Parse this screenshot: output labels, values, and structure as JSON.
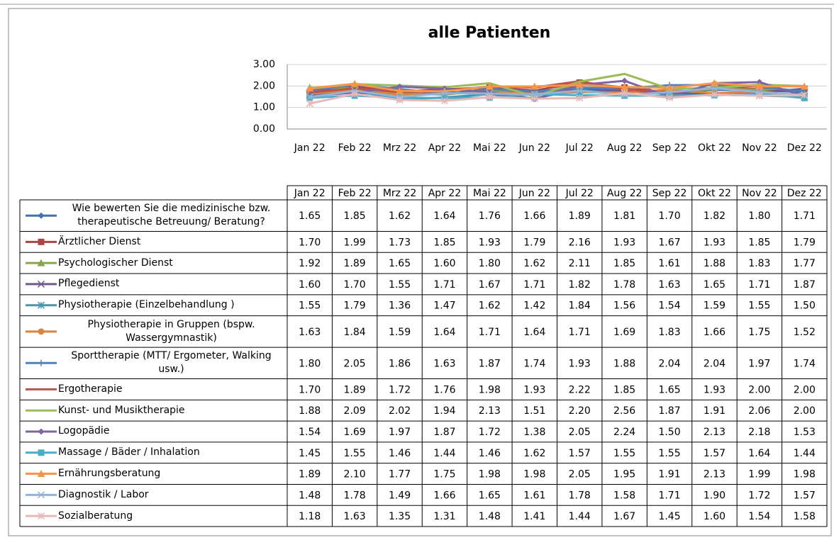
{
  "chart_data": {
    "type": "line",
    "title": "alle Patienten",
    "categories": [
      "Jan 22",
      "Feb 22",
      "Mrz 22",
      "Apr 22",
      "Mai 22",
      "Jun 22",
      "Jul 22",
      "Aug 22",
      "Sep 22",
      "Okt 22",
      "Nov 22",
      "Dez 22"
    ],
    "ylim": [
      0,
      3
    ],
    "yticks": [
      {
        "value": 0,
        "label": "0.00"
      },
      {
        "value": 1,
        "label": "1.00"
      },
      {
        "value": 2,
        "label": "2.00"
      },
      {
        "value": 3,
        "label": "3.00"
      }
    ],
    "grid": true,
    "series": [
      {
        "name": "Wie bewerten Sie die medizinische bzw. therapeutische Betreuung/ Beratung?",
        "color": "#4572A7",
        "marker": "diamond",
        "values": [
          1.65,
          1.85,
          1.62,
          1.64,
          1.76,
          1.66,
          1.89,
          1.81,
          1.7,
          1.82,
          1.8,
          1.71
        ],
        "value_labels": [
          "1.65",
          "1.85",
          "1.62",
          "1.64",
          "1.76",
          "1.66",
          "1.89",
          "1.81",
          "1.70",
          "1.82",
          "1.80",
          "1.71"
        ]
      },
      {
        "name": "Ärztlicher Dienst",
        "color": "#AA4643",
        "marker": "square",
        "values": [
          1.7,
          1.99,
          1.73,
          1.85,
          1.93,
          1.79,
          2.16,
          1.93,
          1.67,
          1.93,
          1.85,
          1.79
        ],
        "value_labels": [
          "1.70",
          "1.99",
          "1.73",
          "1.85",
          "1.93",
          "1.79",
          "2.16",
          "1.93",
          "1.67",
          "1.93",
          "1.85",
          "1.79"
        ]
      },
      {
        "name": "Psychologischer Dienst",
        "color": "#89A54E",
        "marker": "triangle",
        "values": [
          1.92,
          1.89,
          1.65,
          1.6,
          1.8,
          1.62,
          2.11,
          1.85,
          1.61,
          1.88,
          1.83,
          1.77
        ],
        "value_labels": [
          "1.92",
          "1.89",
          "1.65",
          "1.60",
          "1.80",
          "1.62",
          "2.11",
          "1.85",
          "1.61",
          "1.88",
          "1.83",
          "1.77"
        ]
      },
      {
        "name": "Pflegedienst",
        "color": "#71588F",
        "marker": "x",
        "values": [
          1.6,
          1.7,
          1.55,
          1.71,
          1.67,
          1.71,
          1.82,
          1.78,
          1.63,
          1.65,
          1.71,
          1.87
        ],
        "value_labels": [
          "1.60",
          "1.70",
          "1.55",
          "1.71",
          "1.67",
          "1.71",
          "1.82",
          "1.78",
          "1.63",
          "1.65",
          "1.71",
          "1.87"
        ]
      },
      {
        "name": "Physiotherapie (Einzelbehandlung )",
        "color": "#4198AF",
        "marker": "star",
        "values": [
          1.55,
          1.79,
          1.36,
          1.47,
          1.62,
          1.42,
          1.84,
          1.56,
          1.54,
          1.59,
          1.55,
          1.5
        ],
        "value_labels": [
          "1.55",
          "1.79",
          "1.36",
          "1.47",
          "1.62",
          "1.42",
          "1.84",
          "1.56",
          "1.54",
          "1.59",
          "1.55",
          "1.50"
        ]
      },
      {
        "name": "Physiotherapie in Gruppen (bspw. Wassergymnastik)",
        "color": "#DB843D",
        "marker": "circle",
        "values": [
          1.63,
          1.84,
          1.59,
          1.64,
          1.71,
          1.64,
          1.71,
          1.69,
          1.83,
          1.66,
          1.75,
          1.52
        ],
        "value_labels": [
          "1.63",
          "1.84",
          "1.59",
          "1.64",
          "1.71",
          "1.64",
          "1.71",
          "1.69",
          "1.83",
          "1.66",
          "1.75",
          "1.52"
        ]
      },
      {
        "name": "Sporttherapie (MTT/ Ergometer, Walking usw.)",
        "color": "#4F81BD",
        "marker": "plus",
        "values": [
          1.8,
          2.05,
          1.86,
          1.63,
          1.87,
          1.74,
          1.93,
          1.88,
          2.04,
          2.04,
          1.97,
          1.74
        ],
        "value_labels": [
          "1.80",
          "2.05",
          "1.86",
          "1.63",
          "1.87",
          "1.74",
          "1.93",
          "1.88",
          "2.04",
          "2.04",
          "1.97",
          "1.74"
        ]
      },
      {
        "name": "Ergotherapie",
        "color": "#C0504D",
        "marker": "none",
        "values": [
          1.7,
          1.89,
          1.72,
          1.76,
          1.98,
          1.93,
          2.22,
          1.85,
          1.65,
          1.93,
          2,
          2
        ],
        "value_labels": [
          "1.70",
          "1.89",
          "1.72",
          "1.76",
          "1.98",
          "1.93",
          "2.22",
          "1.85",
          "1.65",
          "1.93",
          "2.00",
          "2.00"
        ]
      },
      {
        "name": "Kunst- und Musiktherapie",
        "color": "#9BBB59",
        "marker": "none",
        "values": [
          1.88,
          2.09,
          2.02,
          1.94,
          2.13,
          1.51,
          2.2,
          2.56,
          1.87,
          1.91,
          2.06,
          2
        ],
        "value_labels": [
          "1.88",
          "2.09",
          "2.02",
          "1.94",
          "2.13",
          "1.51",
          "2.20",
          "2.56",
          "1.87",
          "1.91",
          "2.06",
          "2.00"
        ]
      },
      {
        "name": "Logopädie",
        "color": "#8064A2",
        "marker": "diamond",
        "values": [
          1.54,
          1.69,
          1.97,
          1.87,
          1.72,
          1.38,
          2.05,
          2.24,
          1.5,
          2.13,
          2.18,
          1.53
        ],
        "value_labels": [
          "1.54",
          "1.69",
          "1.97",
          "1.87",
          "1.72",
          "1.38",
          "2.05",
          "2.24",
          "1.50",
          "2.13",
          "2.18",
          "1.53"
        ]
      },
      {
        "name": "Massage / Bäder / Inhalation",
        "color": "#4BACC6",
        "marker": "square",
        "values": [
          1.45,
          1.55,
          1.46,
          1.44,
          1.46,
          1.62,
          1.57,
          1.55,
          1.55,
          1.57,
          1.64,
          1.44
        ],
        "value_labels": [
          "1.45",
          "1.55",
          "1.46",
          "1.44",
          "1.46",
          "1.62",
          "1.57",
          "1.55",
          "1.55",
          "1.57",
          "1.64",
          "1.44"
        ]
      },
      {
        "name": "Ernährungsberatung",
        "color": "#F79646",
        "marker": "triangle",
        "values": [
          1.89,
          2.1,
          1.77,
          1.75,
          1.98,
          1.98,
          2.05,
          1.95,
          1.91,
          2.13,
          1.99,
          1.98
        ],
        "value_labels": [
          "1.89",
          "2.10",
          "1.77",
          "1.75",
          "1.98",
          "1.98",
          "2.05",
          "1.95",
          "1.91",
          "2.13",
          "1.99",
          "1.98"
        ]
      },
      {
        "name": "Diagnostik / Labor",
        "color": "#95B3D7",
        "marker": "x",
        "values": [
          1.48,
          1.78,
          1.49,
          1.66,
          1.65,
          1.61,
          1.78,
          1.58,
          1.71,
          1.9,
          1.72,
          1.57
        ],
        "value_labels": [
          "1.48",
          "1.78",
          "1.49",
          "1.66",
          "1.65",
          "1.61",
          "1.78",
          "1.58",
          "1.71",
          "1.90",
          "1.72",
          "1.57"
        ]
      },
      {
        "name": "Sozialberatung",
        "color": "#E6B9B8",
        "marker": "star",
        "values": [
          1.18,
          1.63,
          1.35,
          1.31,
          1.48,
          1.41,
          1.44,
          1.67,
          1.45,
          1.6,
          1.54,
          1.58
        ],
        "value_labels": [
          "1.18",
          "1.63",
          "1.35",
          "1.31",
          "1.48",
          "1.41",
          "1.44",
          "1.67",
          "1.45",
          "1.60",
          "1.54",
          "1.58"
        ]
      }
    ]
  }
}
